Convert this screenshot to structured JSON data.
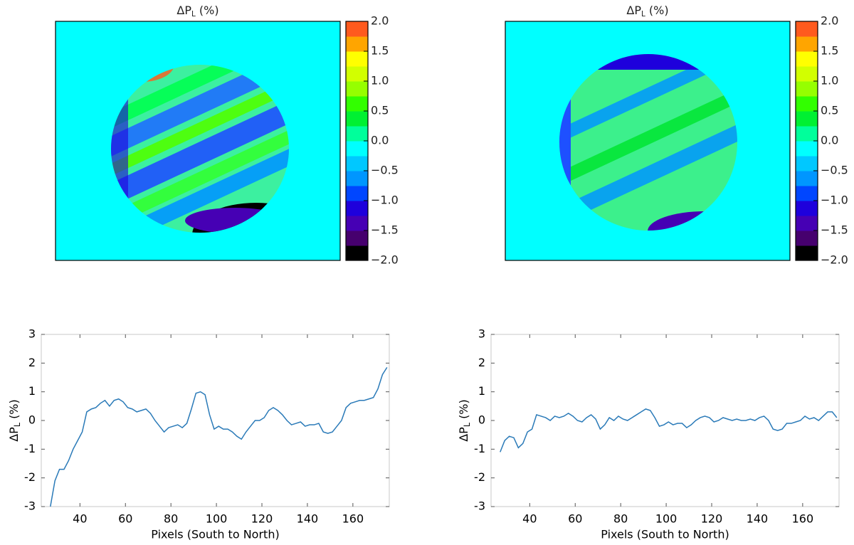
{
  "chart_data": [
    {
      "type": "heatmap",
      "title": [
        "ΔP",
        "L",
        " (%)"
      ],
      "clim": [
        -2,
        2
      ],
      "colorbar_colors": [
        "#000000",
        "#46006e",
        "#4600b4",
        "#1e00dc",
        "#0046ff",
        "#0096ff",
        "#00c8ff",
        "#00ffff",
        "#00ff9b",
        "#00f032",
        "#32ff00",
        "#96ff00",
        "#d2ff00",
        "#ffff00",
        "#ffa500",
        "#ff5a1e"
      ],
      "colorbar_ticks": [
        {
          "value": 2,
          "label": "2.0"
        },
        {
          "value": 1.5,
          "label": "1.5"
        },
        {
          "value": 1,
          "label": "1.0"
        },
        {
          "value": 0.5,
          "label": "0.5"
        },
        {
          "value": 0,
          "label": "0.0"
        },
        {
          "value": -0.5,
          "label": "−0.5"
        },
        {
          "value": -1,
          "label": "−1.0"
        },
        {
          "value": -1.5,
          "label": "−1.5"
        },
        {
          "value": -2,
          "label": "−2.0"
        }
      ]
    },
    {
      "type": "heatmap",
      "title": [
        "ΔP",
        "L",
        " (%)"
      ],
      "clim": [
        -2,
        2
      ],
      "colorbar_colors": [
        "#000000",
        "#46006e",
        "#4600b4",
        "#1e00dc",
        "#0046ff",
        "#0096ff",
        "#00c8ff",
        "#00ffff",
        "#00ff9b",
        "#00f032",
        "#32ff00",
        "#96ff00",
        "#d2ff00",
        "#ffff00",
        "#ffa500",
        "#ff5a1e"
      ],
      "colorbar_ticks": [
        {
          "value": 2,
          "label": "2.0"
        },
        {
          "value": 1.5,
          "label": "1.5"
        },
        {
          "value": 1,
          "label": "1.0"
        },
        {
          "value": 0.5,
          "label": "0.5"
        },
        {
          "value": 0,
          "label": "0.0"
        },
        {
          "value": -0.5,
          "label": "−0.5"
        },
        {
          "value": -1,
          "label": "−1.0"
        },
        {
          "value": -1.5,
          "label": "−1.5"
        },
        {
          "value": -2,
          "label": "−2.0"
        }
      ]
    },
    {
      "type": "line",
      "x_label": "Pixels (South to North)",
      "y_label": [
        "ΔP",
        "L",
        " (%)"
      ],
      "color": "#2a7ab8",
      "xlim": [
        23,
        176
      ],
      "ylim": [
        -3,
        3
      ],
      "xticks": [
        40,
        60,
        80,
        100,
        120,
        140,
        160
      ],
      "yticks": [
        -3,
        -2,
        -1,
        0,
        1,
        2,
        3
      ],
      "x": [
        27,
        29,
        31,
        33,
        35,
        37,
        39,
        41,
        43,
        45,
        47,
        49,
        51,
        53,
        55,
        57,
        59,
        61,
        63,
        65,
        67,
        69,
        71,
        73,
        75,
        77,
        79,
        81,
        83,
        85,
        87,
        89,
        91,
        93,
        95,
        97,
        99,
        101,
        103,
        105,
        107,
        109,
        111,
        113,
        115,
        117,
        119,
        121,
        123,
        125,
        127,
        129,
        131,
        133,
        135,
        137,
        139,
        141,
        143,
        145,
        147,
        149,
        151,
        153,
        155,
        157,
        159,
        161,
        163,
        165,
        167,
        169,
        171,
        173,
        175
      ],
      "values": [
        -3.0,
        -2.1,
        -1.7,
        -1.7,
        -1.4,
        -1.0,
        -0.7,
        -0.4,
        0.3,
        0.4,
        0.45,
        0.6,
        0.7,
        0.5,
        0.7,
        0.75,
        0.65,
        0.45,
        0.4,
        0.3,
        0.35,
        0.4,
        0.25,
        0.0,
        -0.2,
        -0.4,
        -0.25,
        -0.2,
        -0.15,
        -0.25,
        -0.1,
        0.4,
        0.95,
        1.0,
        0.9,
        0.2,
        -0.3,
        -0.2,
        -0.3,
        -0.3,
        -0.4,
        -0.55,
        -0.65,
        -0.4,
        -0.2,
        0.0,
        0.0,
        0.1,
        0.35,
        0.45,
        0.35,
        0.2,
        0.0,
        -0.15,
        -0.1,
        -0.05,
        -0.2,
        -0.15,
        -0.15,
        -0.1,
        -0.4,
        -0.45,
        -0.4,
        -0.2,
        0.0,
        0.45,
        0.6,
        0.65,
        0.7,
        0.7,
        0.75,
        0.8,
        1.1,
        1.6,
        1.85
      ]
    },
    {
      "type": "line",
      "x_label": "Pixels (South to North)",
      "y_label": [
        "ΔP",
        "L",
        " (%)"
      ],
      "color": "#2a7ab8",
      "xlim": [
        23,
        176
      ],
      "ylim": [
        -3,
        3
      ],
      "xticks": [
        40,
        60,
        80,
        100,
        120,
        140,
        160
      ],
      "yticks": [
        -3,
        -2,
        -1,
        0,
        1,
        2,
        3
      ],
      "x": [
        27,
        29,
        31,
        33,
        35,
        37,
        39,
        41,
        43,
        45,
        47,
        49,
        51,
        53,
        55,
        57,
        59,
        61,
        63,
        65,
        67,
        69,
        71,
        73,
        75,
        77,
        79,
        81,
        83,
        85,
        87,
        89,
        91,
        93,
        95,
        97,
        99,
        101,
        103,
        105,
        107,
        109,
        111,
        113,
        115,
        117,
        119,
        121,
        123,
        125,
        127,
        129,
        131,
        133,
        135,
        137,
        139,
        141,
        143,
        145,
        147,
        149,
        151,
        153,
        155,
        157,
        159,
        161,
        163,
        165,
        167,
        169,
        171,
        173,
        175
      ],
      "values": [
        -1.1,
        -0.7,
        -0.55,
        -0.6,
        -0.95,
        -0.8,
        -0.4,
        -0.3,
        0.2,
        0.15,
        0.1,
        0.0,
        0.15,
        0.1,
        0.15,
        0.25,
        0.15,
        0.0,
        -0.05,
        0.1,
        0.2,
        0.05,
        -0.3,
        -0.15,
        0.1,
        0.0,
        0.15,
        0.05,
        0.0,
        0.1,
        0.2,
        0.3,
        0.4,
        0.35,
        0.1,
        -0.2,
        -0.15,
        -0.05,
        -0.15,
        -0.1,
        -0.1,
        -0.25,
        -0.15,
        0.0,
        0.1,
        0.15,
        0.1,
        -0.05,
        0.0,
        0.1,
        0.05,
        0.0,
        0.05,
        0.0,
        0.0,
        0.05,
        0.0,
        0.1,
        0.15,
        0.0,
        -0.3,
        -0.35,
        -0.3,
        -0.1,
        -0.1,
        -0.05,
        0.0,
        0.15,
        0.05,
        0.1,
        0.0,
        0.15,
        0.3,
        0.3,
        0.1
      ]
    }
  ]
}
